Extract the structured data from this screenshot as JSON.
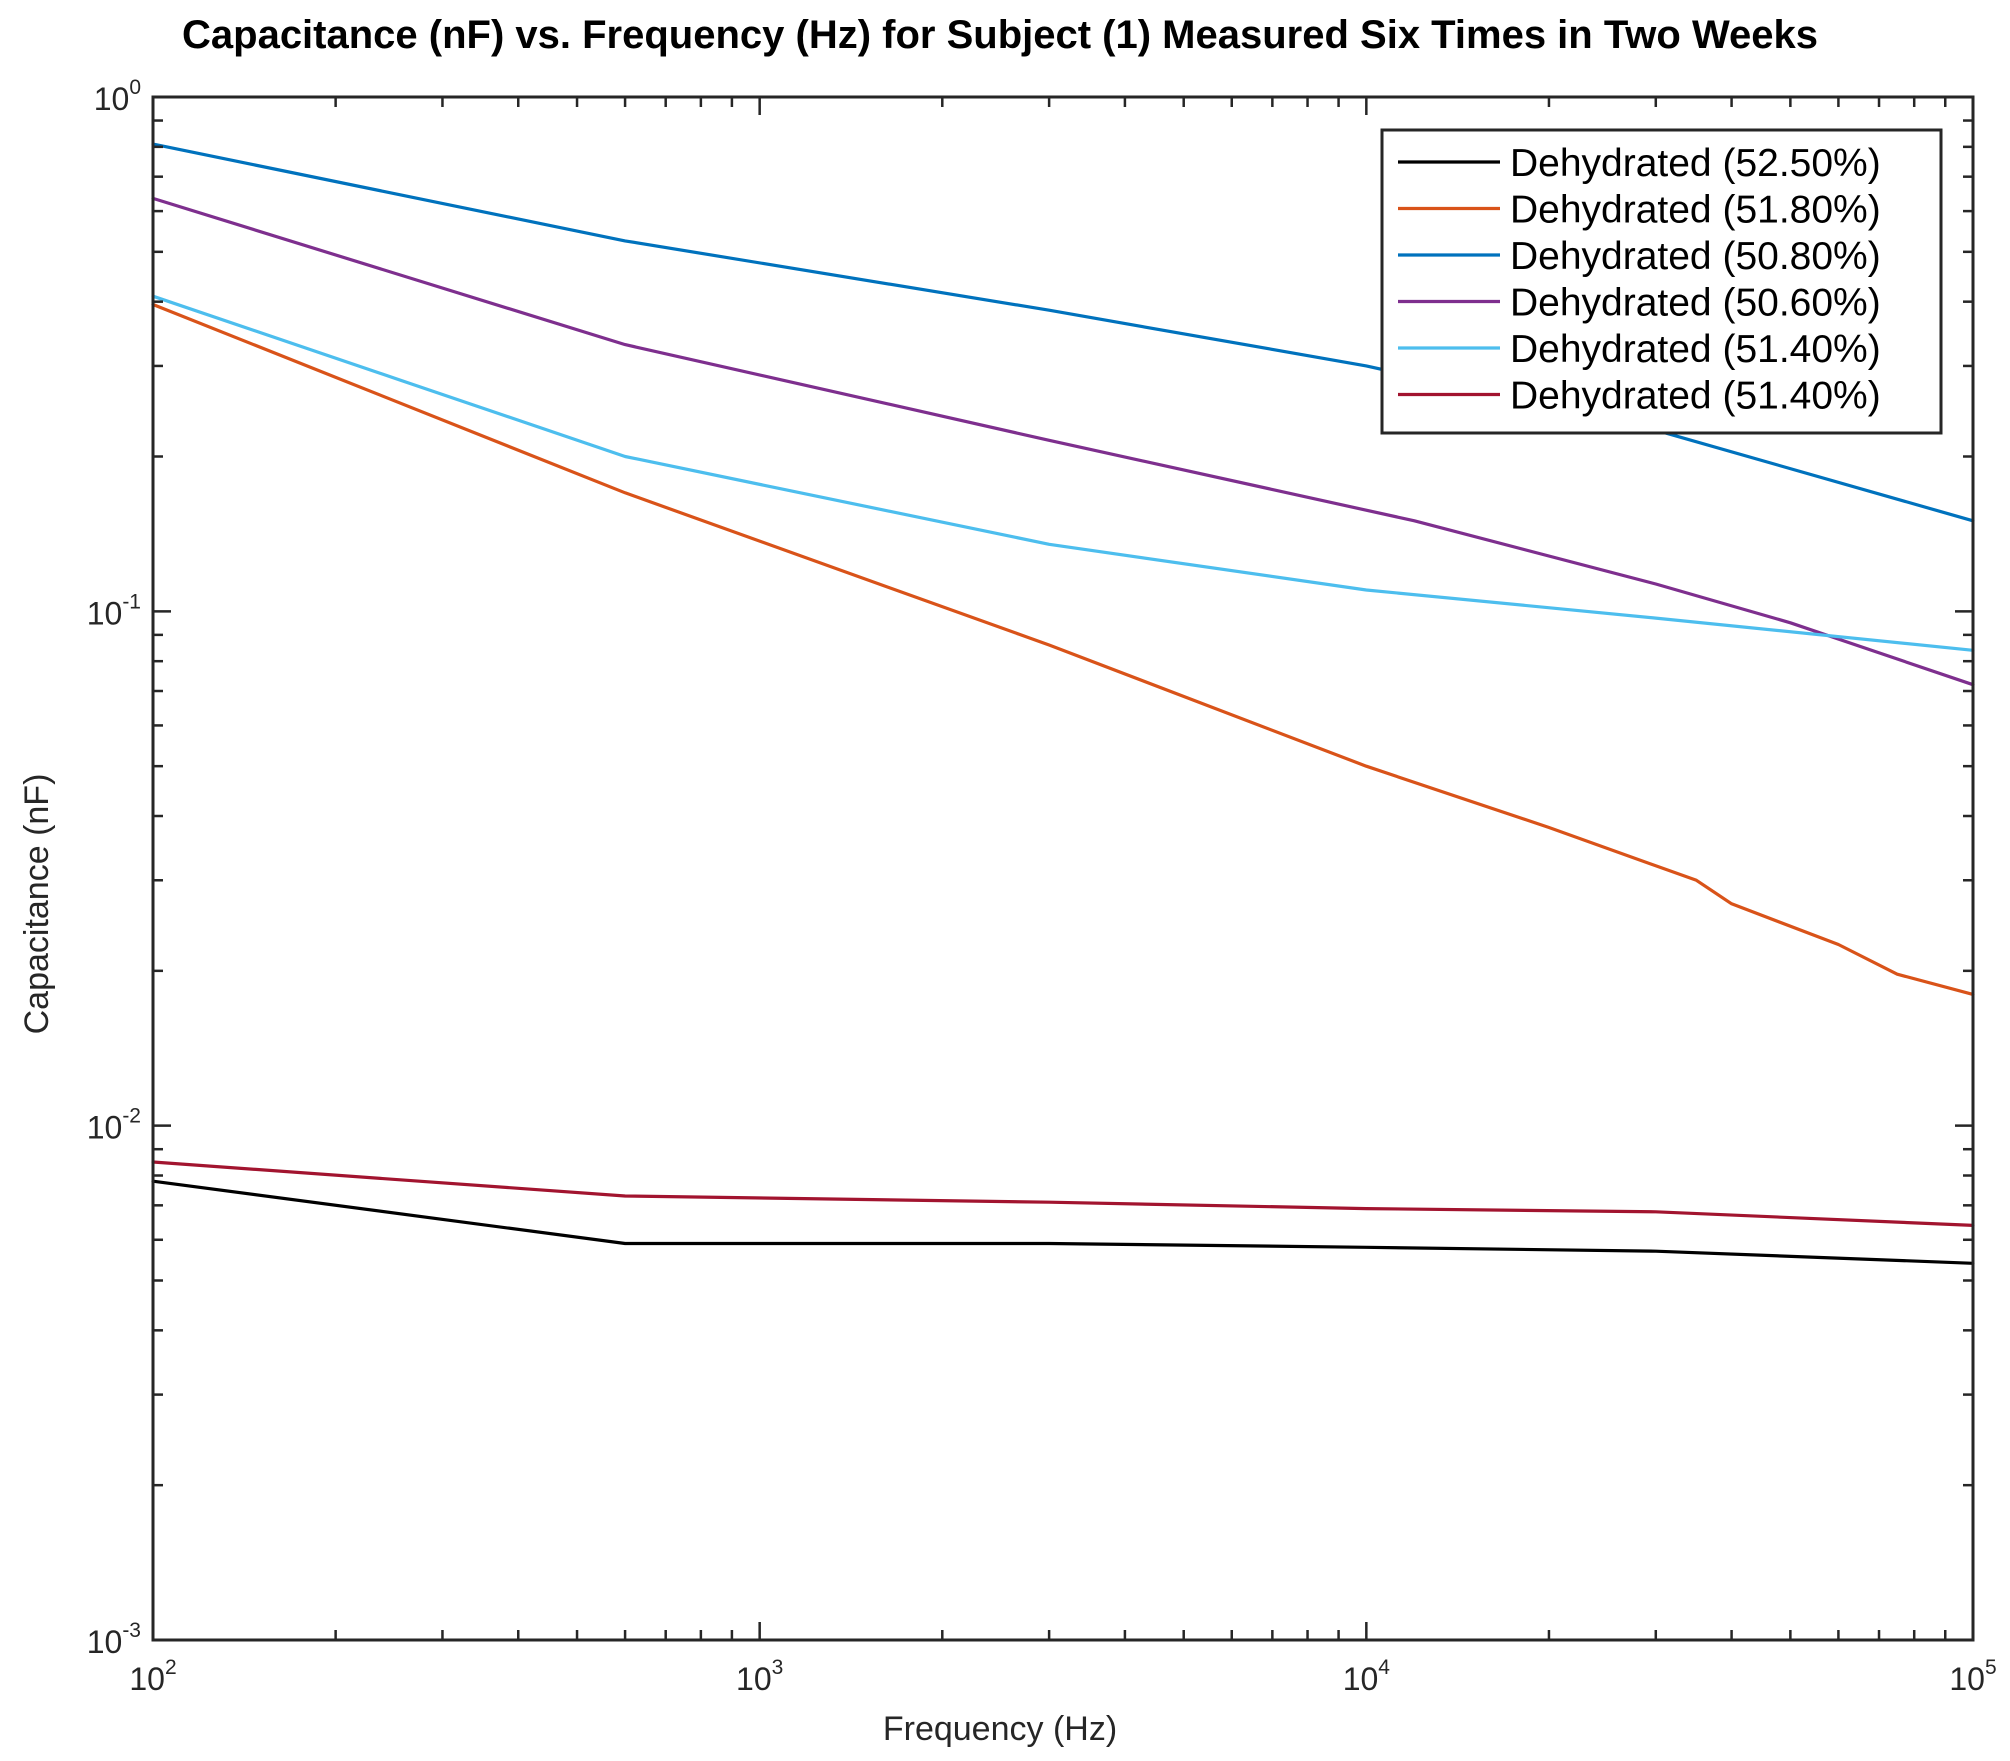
{
  "chart_data": {
    "type": "line",
    "title": "Capacitance (nF) vs. Frequency (Hz) for Subject (1) Measured Six Times in Two Weeks",
    "xlabel": "Frequency (Hz)",
    "ylabel": "Capacitance (nF)",
    "xscale": "log",
    "yscale": "log",
    "xlim": [
      100,
      100000
    ],
    "ylim": [
      0.001,
      1
    ],
    "x_ticks": [
      {
        "base": "10",
        "exp": "2",
        "value": 100
      },
      {
        "base": "10",
        "exp": "3",
        "value": 1000
      },
      {
        "base": "10",
        "exp": "4",
        "value": 10000
      },
      {
        "base": "10",
        "exp": "5",
        "value": 100000
      }
    ],
    "y_ticks": [
      {
        "base": "10",
        "exp": "-3",
        "value": 0.001
      },
      {
        "base": "10",
        "exp": "-2",
        "value": 0.01
      },
      {
        "base": "10",
        "exp": "-1",
        "value": 0.1
      },
      {
        "base": "10",
        "exp": "0",
        "value": 1
      }
    ],
    "grid": false,
    "legend_position": "top-right",
    "series": [
      {
        "name": "Dehydrated (52.50%)",
        "color": "#000000",
        "x": [
          100,
          600,
          3000,
          10000,
          30000,
          100000
        ],
        "y": [
          0.0078,
          0.0059,
          0.0059,
          0.0058,
          0.0057,
          0.0054
        ]
      },
      {
        "name": "Dehydrated (51.80%)",
        "color": "#D95319",
        "x": [
          100,
          600,
          3000,
          10000,
          20000,
          35000,
          40000,
          60000,
          75000,
          100000
        ],
        "y": [
          0.395,
          0.17,
          0.086,
          0.05,
          0.038,
          0.03,
          0.027,
          0.0225,
          0.0197,
          0.018
        ]
      },
      {
        "name": "Dehydrated (50.80%)",
        "color": "#0072BD",
        "x": [
          100,
          600,
          3000,
          10000,
          30000,
          100000
        ],
        "y": [
          0.81,
          0.525,
          0.385,
          0.3,
          0.225,
          0.15
        ]
      },
      {
        "name": "Dehydrated (50.60%)",
        "color": "#7E2F8E",
        "x": [
          100,
          600,
          3000,
          12000,
          30000,
          50000,
          100000
        ],
        "y": [
          0.635,
          0.33,
          0.215,
          0.15,
          0.113,
          0.095,
          0.072
        ]
      },
      {
        "name": "Dehydrated (51.40%)",
        "color": "#4DBEEE",
        "x": [
          100,
          600,
          3000,
          10000,
          30000,
          100000
        ],
        "y": [
          0.41,
          0.2,
          0.135,
          0.11,
          0.097,
          0.084
        ]
      },
      {
        "name": "Dehydrated (51.40%)",
        "color": "#A2142F",
        "x": [
          100,
          600,
          3000,
          10000,
          30000,
          100000
        ],
        "y": [
          0.0085,
          0.0073,
          0.0071,
          0.0069,
          0.0068,
          0.0064
        ]
      }
    ]
  }
}
